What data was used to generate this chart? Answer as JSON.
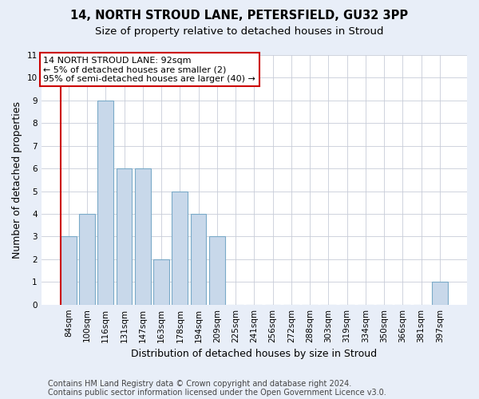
{
  "title1": "14, NORTH STROUD LANE, PETERSFIELD, GU32 3PP",
  "title2": "Size of property relative to detached houses in Stroud",
  "xlabel": "Distribution of detached houses by size in Stroud",
  "ylabel": "Number of detached properties",
  "categories": [
    "84sqm",
    "100sqm",
    "116sqm",
    "131sqm",
    "147sqm",
    "163sqm",
    "178sqm",
    "194sqm",
    "209sqm",
    "225sqm",
    "241sqm",
    "256sqm",
    "272sqm",
    "288sqm",
    "303sqm",
    "319sqm",
    "334sqm",
    "350sqm",
    "366sqm",
    "381sqm",
    "397sqm"
  ],
  "values": [
    3,
    4,
    9,
    6,
    6,
    2,
    5,
    4,
    3,
    0,
    0,
    0,
    0,
    0,
    0,
    0,
    0,
    0,
    0,
    0,
    1
  ],
  "bar_color": "#c8d8ea",
  "bar_edge_color": "#7aaac8",
  "annotation_text": "14 NORTH STROUD LANE: 92sqm\n← 5% of detached houses are smaller (2)\n95% of semi-detached houses are larger (40) →",
  "annotation_box_color": "#ffffff",
  "annotation_box_edge_color": "#cc0000",
  "ylim": [
    0,
    11
  ],
  "yticks": [
    0,
    1,
    2,
    3,
    4,
    5,
    6,
    7,
    8,
    9,
    10,
    11
  ],
  "footer1": "Contains HM Land Registry data © Crown copyright and database right 2024.",
  "footer2": "Contains public sector information licensed under the Open Government Licence v3.0.",
  "background_color": "#e8eef8",
  "plot_background_color": "#ffffff",
  "grid_color": "#c8ccd8",
  "title1_fontsize": 10.5,
  "title2_fontsize": 9.5,
  "xlabel_fontsize": 9,
  "ylabel_fontsize": 9,
  "tick_fontsize": 7.5,
  "annotation_fontsize": 8,
  "footer_fontsize": 7
}
